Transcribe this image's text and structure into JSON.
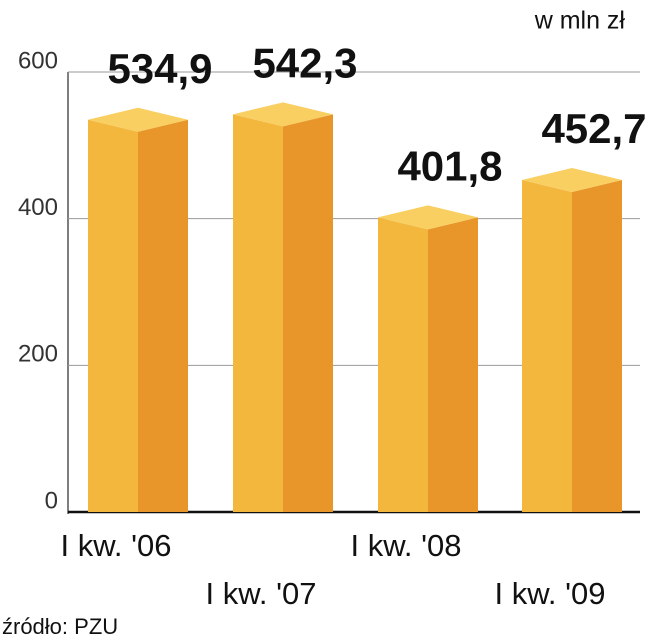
{
  "chart_data": {
    "type": "bar3d",
    "unit_label": "w mln zł",
    "source": "źródło: PZU",
    "categories": [
      "I kw. '06",
      "I kw. '07",
      "I kw. '08",
      "I kw. '09"
    ],
    "values": [
      534.9,
      542.3,
      401.8,
      452.7
    ],
    "value_labels": [
      "534,9",
      "542,3",
      "401,8",
      "452,7"
    ],
    "colors": {
      "front": "#f2b73c",
      "side": "#e8952a",
      "top": "#f9cf62"
    },
    "ylim": [
      0,
      600
    ],
    "yticks": [
      0,
      200,
      400,
      600
    ],
    "grid": true
  }
}
